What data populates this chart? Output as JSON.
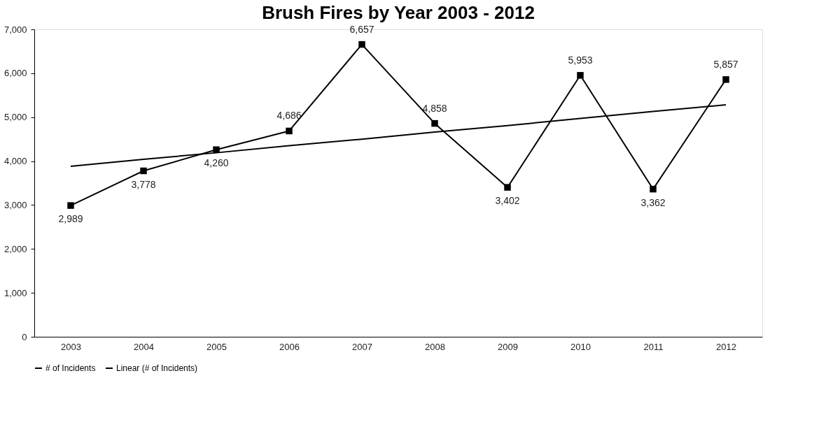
{
  "chart_data": {
    "type": "line",
    "title": "Brush Fires by Year 2003 - 2012",
    "categories": [
      "2003",
      "2004",
      "2005",
      "2006",
      "2007",
      "2008",
      "2009",
      "2010",
      "2011",
      "2012"
    ],
    "series": [
      {
        "name": "# of Incidents",
        "color": "#000000",
        "marker": "square",
        "values": [
          2989,
          3778,
          4260,
          4686,
          6657,
          4858,
          3402,
          5953,
          3362,
          5857
        ],
        "value_labels": [
          "2,989",
          "3,778",
          "4,260",
          "4,686",
          "6,657",
          "4,858",
          "3,402",
          "5,953",
          "3,362",
          "5,857"
        ]
      },
      {
        "name": "Linear (# of Incidents)",
        "color": "#000000",
        "type": "line",
        "marker": "none",
        "values": [
          3880,
          4040,
          4190,
          4350,
          4500,
          4660,
          4810,
          4970,
          5130,
          5280
        ]
      }
    ],
    "ylim": [
      0,
      7000
    ],
    "yticks": [
      0,
      {
        "value": 1000,
        "label": "1,000"
      },
      {
        "value": 2000,
        "label": "2,000"
      },
      {
        "value": 3000,
        "label": "3,000"
      },
      {
        "value": 4000,
        "label": "4,000"
      },
      {
        "value": 5000,
        "label": "5,000"
      },
      {
        "value": 6000,
        "label": "6,000"
      },
      {
        "value": 7000,
        "label": "7,000"
      }
    ],
    "grid": false,
    "legend": "bottom",
    "line_style": "solid"
  }
}
